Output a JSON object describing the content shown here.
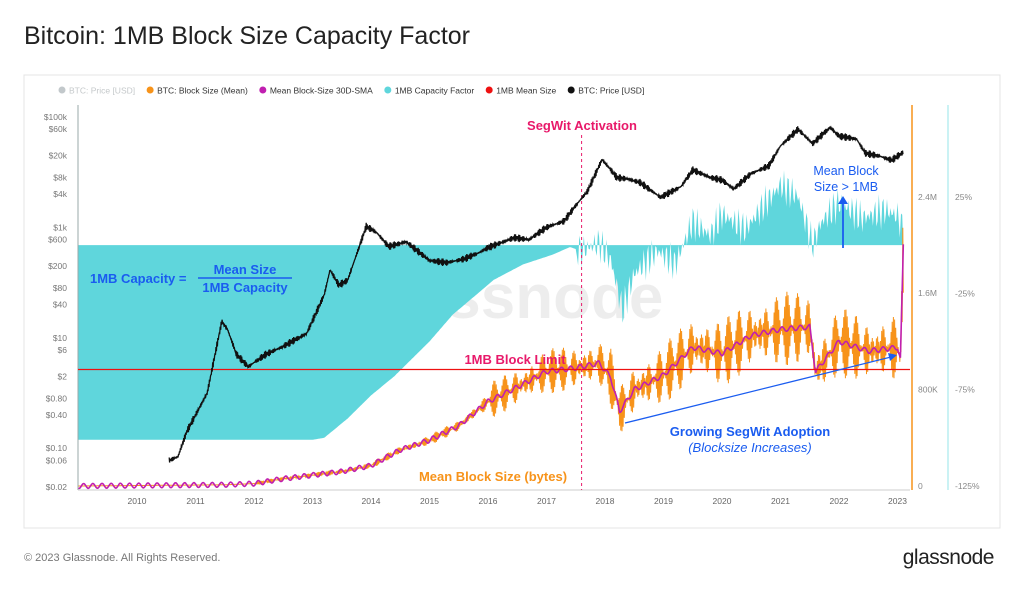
{
  "title": "Bitcoin: 1MB Block Size Capacity Factor",
  "footer": "© 2023 Glassnode. All Rights Reserved.",
  "logo": "glassnode",
  "watermark": "glassnode",
  "chart_data": {
    "type": "line",
    "legend": [
      {
        "name": "BTC: Price [USD]",
        "color": "#9aa4a8",
        "disabled": true
      },
      {
        "name": "BTC: Block Size (Mean)",
        "color": "#f7931a"
      },
      {
        "name": "Mean Block-Size 30D-SMA",
        "color": "#c01fb0"
      },
      {
        "name": "1MB Capacity Factor",
        "color": "#5fd6dc"
      },
      {
        "name": "1MB Mean Size",
        "color": "#ee1111"
      },
      {
        "name": "BTC: Price [USD]",
        "color": "#111111"
      }
    ],
    "legend_position": "top-left",
    "grid": false,
    "x_ticks": [
      "2010",
      "2011",
      "2012",
      "2013",
      "2014",
      "2015",
      "2016",
      "2017",
      "2018",
      "2019",
      "2020",
      "2021",
      "2022",
      "2023"
    ],
    "y_left": {
      "scale": "log",
      "ticks": [
        "$100k",
        "$60k",
        "$20k",
        "$8k",
        "$4k",
        "$1k",
        "$600",
        "$200",
        "$80",
        "$40",
        "$10",
        "$6",
        "$2",
        "$0.80",
        "$0.40",
        "$0.10",
        "$0.06",
        "$0.02"
      ],
      "tick_values": [
        100000,
        60000,
        20000,
        8000,
        4000,
        1000,
        600,
        200,
        80,
        40,
        10,
        6,
        2,
        0.8,
        0.4,
        0.1,
        0.06,
        0.02
      ]
    },
    "y_right_block_size": {
      "ticks": [
        "2.4M",
        "1.6M",
        "800K",
        "0"
      ],
      "tick_values": [
        2.4,
        1.6,
        0.8,
        0
      ]
    },
    "y_right_capacity": {
      "ticks": [
        "25%",
        "-25%",
        "-75%",
        "-125%"
      ],
      "tick_values": [
        25,
        -25,
        -75,
        -125
      ]
    },
    "price": [
      [
        2010.55,
        0.06
      ],
      [
        2010.7,
        0.07
      ],
      [
        2010.85,
        0.2
      ],
      [
        2011.05,
        0.5
      ],
      [
        2011.2,
        1
      ],
      [
        2011.45,
        20
      ],
      [
        2011.55,
        14
      ],
      [
        2011.7,
        5
      ],
      [
        2011.9,
        3
      ],
      [
        2012.2,
        5
      ],
      [
        2012.5,
        7
      ],
      [
        2012.9,
        12
      ],
      [
        2013.2,
        60
      ],
      [
        2013.3,
        170
      ],
      [
        2013.45,
        90
      ],
      [
        2013.6,
        110
      ],
      [
        2013.92,
        1050
      ],
      [
        2014.1,
        800
      ],
      [
        2014.3,
        450
      ],
      [
        2014.6,
        550
      ],
      [
        2015.0,
        250
      ],
      [
        2015.3,
        230
      ],
      [
        2015.6,
        270
      ],
      [
        2015.85,
        350
      ],
      [
        2016.0,
        430
      ],
      [
        2016.45,
        650
      ],
      [
        2016.7,
        600
      ],
      [
        2017.0,
        1000
      ],
      [
        2017.3,
        1300
      ],
      [
        2017.5,
        2500
      ],
      [
        2017.7,
        4500
      ],
      [
        2017.95,
        17000
      ],
      [
        2018.1,
        11000
      ],
      [
        2018.2,
        8000
      ],
      [
        2018.4,
        7500
      ],
      [
        2018.6,
        6500
      ],
      [
        2018.95,
        3500
      ],
      [
        2019.3,
        5500
      ],
      [
        2019.5,
        11000
      ],
      [
        2019.8,
        8000
      ],
      [
        2020.0,
        7200
      ],
      [
        2020.2,
        5000
      ],
      [
        2020.5,
        9500
      ],
      [
        2020.8,
        13000
      ],
      [
        2021.0,
        30000
      ],
      [
        2021.3,
        60000
      ],
      [
        2021.55,
        33000
      ],
      [
        2021.85,
        65000
      ],
      [
        2022.0,
        45000
      ],
      [
        2022.3,
        40000
      ],
      [
        2022.45,
        22000
      ],
      [
        2022.7,
        19500
      ],
      [
        2022.9,
        16500
      ],
      [
        2023.1,
        23000
      ]
    ],
    "block_size_mean_mb": [
      [
        2009.0,
        0.0
      ],
      [
        2011.5,
        0.01
      ],
      [
        2012.0,
        0.02
      ],
      [
        2012.5,
        0.06
      ],
      [
        2013.0,
        0.09
      ],
      [
        2013.5,
        0.12
      ],
      [
        2014.0,
        0.17
      ],
      [
        2014.5,
        0.3
      ],
      [
        2015.0,
        0.38
      ],
      [
        2015.5,
        0.5
      ],
      [
        2016.0,
        0.7
      ],
      [
        2016.5,
        0.82
      ],
      [
        2017.0,
        0.95
      ],
      [
        2017.5,
        0.98
      ],
      [
        2017.9,
        1.02
      ],
      [
        2018.1,
        0.9
      ],
      [
        2018.25,
        0.62
      ],
      [
        2018.5,
        0.8
      ],
      [
        2019.0,
        0.92
      ],
      [
        2019.5,
        1.15
      ],
      [
        2020.0,
        1.1
      ],
      [
        2020.5,
        1.25
      ],
      [
        2021.0,
        1.3
      ],
      [
        2021.5,
        1.32
      ],
      [
        2021.6,
        0.95
      ],
      [
        2022.0,
        1.2
      ],
      [
        2022.5,
        1.12
      ],
      [
        2023.0,
        1.15
      ],
      [
        2023.05,
        1.05
      ],
      [
        2023.1,
        2.0
      ]
    ],
    "capacity_factor_pct": [
      [
        2009.0,
        -101
      ],
      [
        2013.0,
        -101
      ],
      [
        2013.2,
        -100
      ],
      [
        2013.6,
        -90
      ],
      [
        2014.0,
        -78
      ],
      [
        2014.4,
        -68
      ],
      [
        2015.0,
        -50
      ],
      [
        2015.4,
        -36
      ],
      [
        2016.1,
        -18
      ],
      [
        2016.6,
        -10
      ],
      [
        2017.1,
        -5
      ],
      [
        2017.4,
        -1
      ],
      [
        2017.6,
        -3
      ],
      [
        2017.9,
        1
      ],
      [
        2018.1,
        -8
      ],
      [
        2018.3,
        -34
      ],
      [
        2018.5,
        -15
      ],
      [
        2018.9,
        -3
      ],
      [
        2019.2,
        -10
      ],
      [
        2019.5,
        12
      ],
      [
        2019.8,
        5
      ],
      [
        2020.0,
        16
      ],
      [
        2020.4,
        8
      ],
      [
        2020.7,
        20
      ],
      [
        2021.0,
        31
      ],
      [
        2021.3,
        25
      ],
      [
        2021.55,
        0
      ],
      [
        2021.7,
        12
      ],
      [
        2022.0,
        22
      ],
      [
        2022.4,
        14
      ],
      [
        2022.8,
        18
      ],
      [
        2023.0,
        15
      ],
      [
        2023.1,
        8
      ]
    ],
    "mean_size_limit_mb": 1,
    "segwit_activation": 2017.6,
    "annotations": {
      "segwit": "SegWit Activation",
      "formula_left": "1MB Capacity =",
      "formula_num": "Mean Size",
      "formula_den": "1MB Capacity",
      "limit": "1MB Block Limit",
      "mean_size": "Mean Block Size (bytes)",
      "adoption": "Growing SegWit Adoption",
      "adoption_sub": "(Blocksize Increases)",
      "gt1mb_1": "Mean Block",
      "gt1mb_2": "Size > 1MB"
    }
  }
}
